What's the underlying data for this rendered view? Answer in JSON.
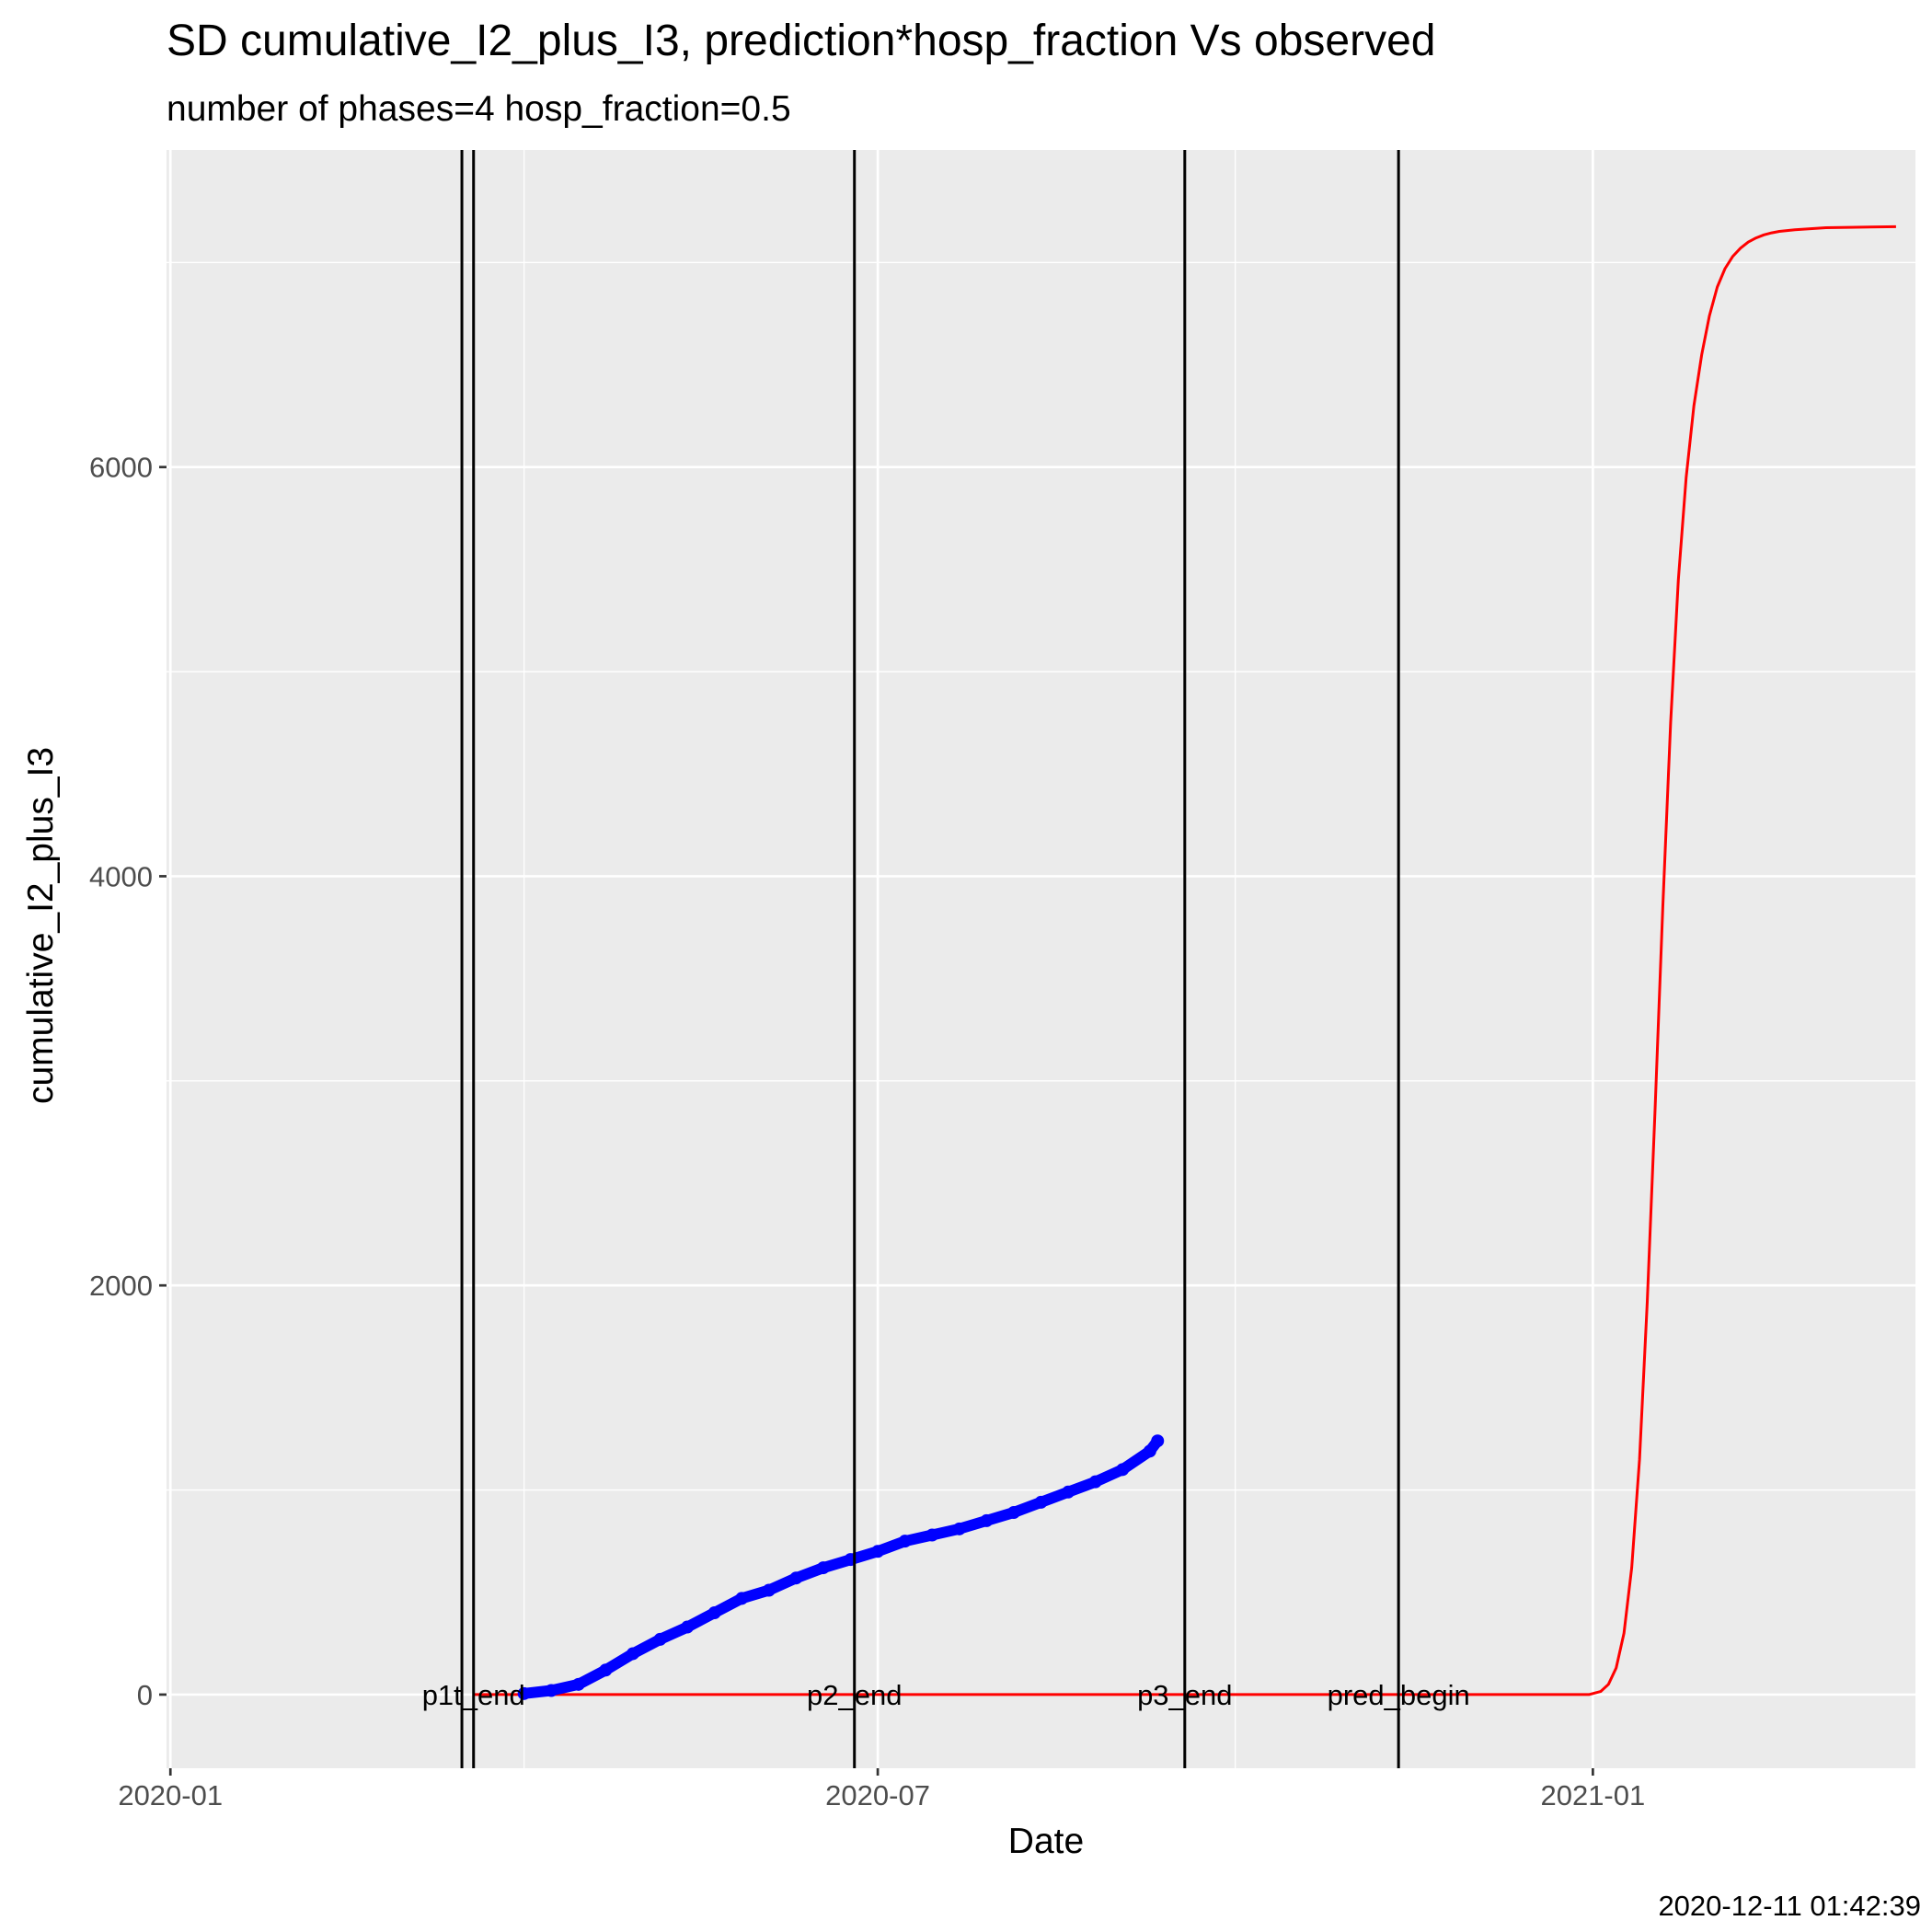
{
  "chart_data": {
    "type": "line",
    "title": "SD cumulative_I2_plus_I3,  prediction*hosp_fraction Vs observed",
    "subtitle": "number of phases=4   hosp_fraction=0.5",
    "xlabel": "Date",
    "ylabel": "cumulative_I2_plus_I3",
    "caption": "2020-12-11 01:42:39",
    "x_axis": {
      "type": "date",
      "range": [
        "2019-12-31",
        "2021-03-25"
      ],
      "ticks": [
        {
          "date": "2020-01-01",
          "label": "2020-01"
        },
        {
          "date": "2020-07-01",
          "label": "2020-07"
        },
        {
          "date": "2021-01-01",
          "label": "2021-01"
        }
      ],
      "minor_ticks": [
        "2020-04-01",
        "2020-10-01",
        "2021-04-01"
      ]
    },
    "y_axis": {
      "range": [
        -360,
        7550
      ],
      "ticks": [
        0,
        2000,
        4000,
        6000
      ],
      "minor_ticks": [
        1000,
        3000,
        5000,
        7000
      ]
    },
    "grid": true,
    "vertical_lines": [
      {
        "date": "2020-03-16",
        "label": ""
      },
      {
        "date": "2020-03-19",
        "label": "p1t_end"
      },
      {
        "date": "2020-06-25",
        "label": "p2_end"
      },
      {
        "date": "2020-09-18",
        "label": "p3_end"
      },
      {
        "date": "2020-11-12",
        "label": "pred_begin"
      }
    ],
    "series": [
      {
        "type": "line",
        "color": "#ff0000",
        "x": [
          "2020-03-19",
          "2020-12-31",
          "2021-01-03",
          "2021-01-05",
          "2021-01-07",
          "2021-01-09",
          "2021-01-11",
          "2021-01-13",
          "2021-01-15",
          "2021-01-17",
          "2021-01-19",
          "2021-01-21",
          "2021-01-23",
          "2021-01-25",
          "2021-01-27",
          "2021-01-29",
          "2021-01-31",
          "2021-02-02",
          "2021-02-04",
          "2021-02-06",
          "2021-02-08",
          "2021-02-10",
          "2021-02-12",
          "2021-02-14",
          "2021-02-16",
          "2021-02-18",
          "2021-02-22",
          "2021-02-26",
          "2021-03-02",
          "2021-03-08",
          "2021-03-20"
        ],
        "y": [
          0,
          0,
          15,
          50,
          130,
          300,
          620,
          1150,
          1920,
          2860,
          3850,
          4750,
          5450,
          5950,
          6300,
          6550,
          6740,
          6880,
          6970,
          7030,
          7070,
          7100,
          7120,
          7135,
          7145,
          7152,
          7160,
          7165,
          7170,
          7172,
          7175
        ]
      },
      {
        "type": "scatter",
        "color": "#0000ff",
        "x": [
          "2020-04-01",
          "2020-04-08",
          "2020-04-15",
          "2020-04-22",
          "2020-04-29",
          "2020-05-06",
          "2020-05-13",
          "2020-05-20",
          "2020-05-27",
          "2020-06-03",
          "2020-06-10",
          "2020-06-17",
          "2020-06-24",
          "2020-07-01",
          "2020-07-08",
          "2020-07-15",
          "2020-07-22",
          "2020-07-29",
          "2020-08-05",
          "2020-08-12",
          "2020-08-19",
          "2020-08-26",
          "2020-09-02",
          "2020-09-09",
          "2020-09-11"
        ],
        "y": [
          5,
          20,
          50,
          120,
          200,
          270,
          330,
          400,
          470,
          510,
          570,
          620,
          660,
          700,
          750,
          780,
          810,
          850,
          890,
          940,
          990,
          1040,
          1100,
          1190,
          1240
        ]
      }
    ]
  }
}
